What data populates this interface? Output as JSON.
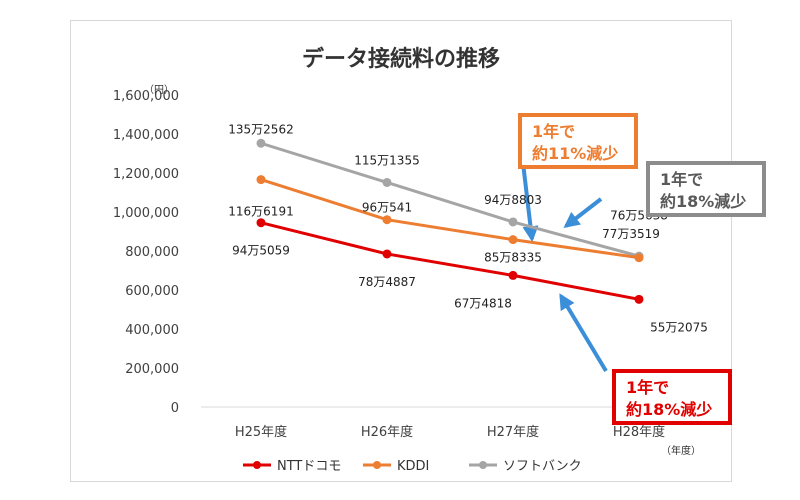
{
  "chart_data": {
    "type": "line",
    "title": "データ接続料の推移",
    "y_unit": "（円）",
    "x_unit": "（年度）",
    "categories": [
      "H25年度",
      "H26年度",
      "H27年度",
      "H28年度"
    ],
    "ylim": [
      0,
      1600000
    ],
    "y_ticks": [
      "1,600,000",
      "1,400,000",
      "1,200,000",
      "1,000,000",
      "800,000",
      "600,000",
      "400,000",
      "200,000",
      "0"
    ],
    "grid": false,
    "legend_position": "bottom",
    "series": [
      {
        "name": "NTTドコモ",
        "color": "#e00000",
        "values": [
          945059,
          784887,
          674818,
          552075
        ],
        "labels": [
          "94万5059",
          "78万4887",
          "67万4818",
          "55万2075"
        ]
      },
      {
        "name": "KDDI",
        "color": "#ed7d31",
        "values": [
          1166191,
          960541,
          858335,
          765638
        ],
        "labels": [
          "116万6191",
          "96万541",
          "85万8335",
          "76万5638"
        ]
      },
      {
        "name": "ソフトバンク",
        "color": "#a5a5a5",
        "values": [
          1352562,
          1151355,
          948803,
          773519
        ],
        "labels": [
          "135万2562",
          "115万1355",
          "94万8803",
          "77万3519"
        ]
      }
    ],
    "annotations": {
      "kddi": {
        "line1": "1年で",
        "line2": "約11%減少",
        "color": "#ed7d31"
      },
      "softbank": {
        "line1": "1年で",
        "line2": "約18%減少",
        "color": "#8c8c8c"
      },
      "docomo": {
        "line1": "1年で",
        "line2": "約18%減少",
        "color": "#e00000"
      }
    }
  }
}
